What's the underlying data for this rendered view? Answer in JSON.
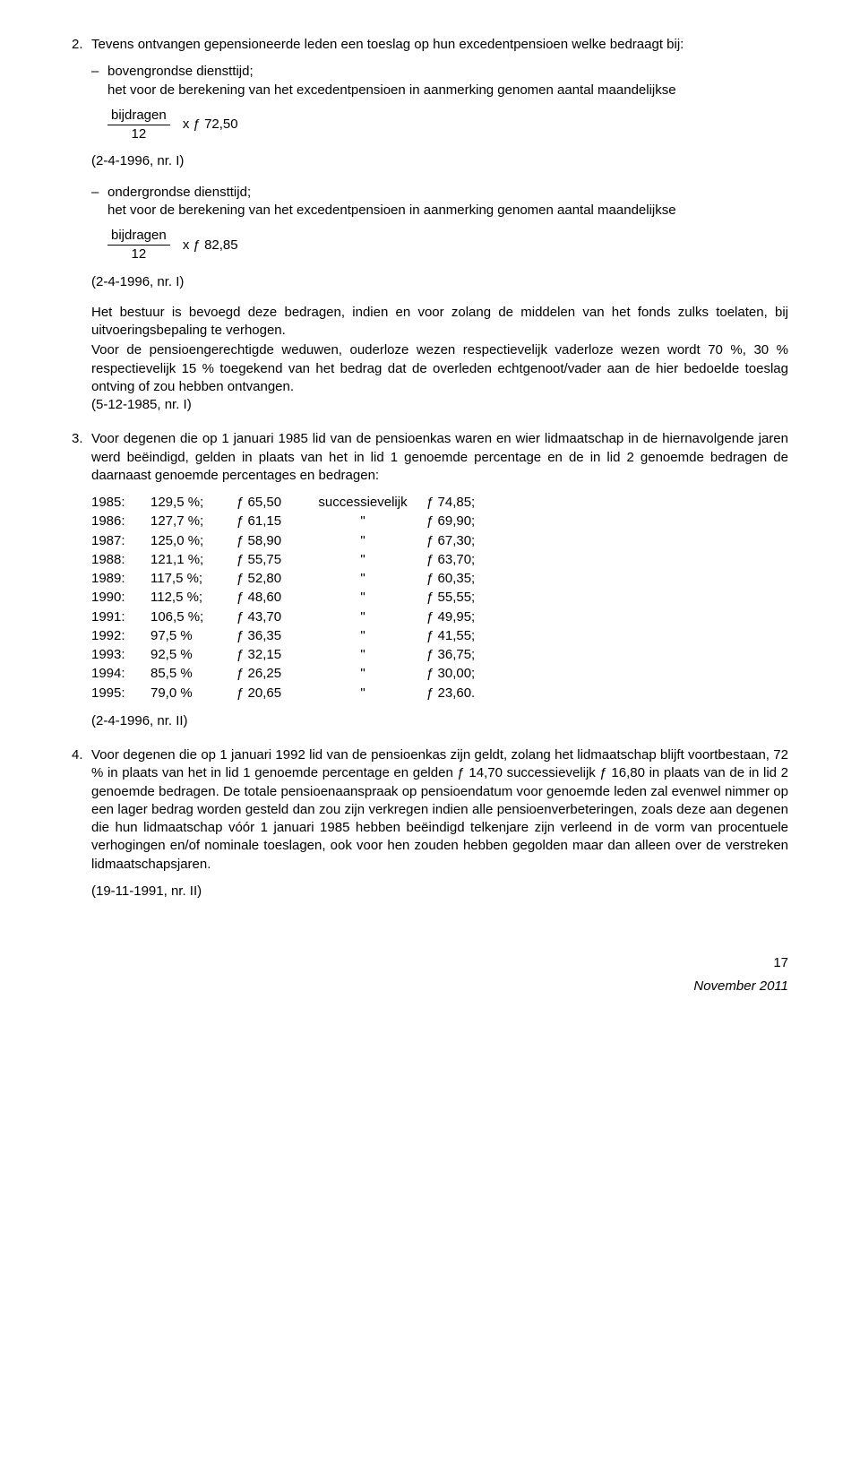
{
  "item2": {
    "num": "2.",
    "intro": "Tevens ontvangen gepensioneerde leden een toeslag op hun excedentpensioen welke bedraagt bij:",
    "b1_dash": "–",
    "b1_text": "bovengrondse diensttijd;\nhet voor de berekening van het excedentpensioen in aanmerking genomen aantal maandelijkse",
    "frac1_top": "bijdragen",
    "frac1_bot": "12",
    "frac1_mult": "x ƒ 72,50",
    "ref1": "(2-4-1996, nr. I)",
    "b2_dash": "–",
    "b2_text": "ondergrondse diensttijd;\nhet voor de berekening van het excedentpensioen in aanmerking genomen aantal maandelijkse",
    "frac2_top": "bijdragen",
    "frac2_bot": "12",
    "frac2_mult": "x ƒ 82,85",
    "ref2": "(2-4-1996, nr. I)",
    "para_bestuur": "Het bestuur is bevoegd deze bedragen, indien en voor zolang de middelen van het fonds zulks toelaten, bij uitvoeringsbepaling te verhogen.",
    "para_widows": "Voor de pensioengerechtigde weduwen, ouderloze wezen respectievelijk vaderloze wezen wordt 70 %, 30 % respectievelijk 15 % toegekend van het bedrag dat de overleden echtgenoot/vader aan de hier bedoelde toeslag ontving of zou hebben ontvangen.",
    "ref3": "(5-12-1985, nr. I)"
  },
  "item3": {
    "num": "3.",
    "intro": "Voor degenen die op 1 januari 1985 lid van de pensioenkas waren en wier lidmaatschap in de hiernavolgende jaren werd beëindigd, gelden in plaats van het in lid 1 genoemde percentage en de in lid 2 genoemde bedragen de daarnaast genoemde percentages en bedragen:",
    "succ_word": "successievelijk",
    "quote": "\"",
    "rows": [
      {
        "y": "1985:",
        "p": "129,5 %;",
        "a": "ƒ 65,50",
        "b": "ƒ 74,85;"
      },
      {
        "y": "1986:",
        "p": "127,7 %;",
        "a": "ƒ 61,15",
        "b": "ƒ 69,90;"
      },
      {
        "y": "1987:",
        "p": "125,0 %;",
        "a": "ƒ 58,90",
        "b": "ƒ 67,30;"
      },
      {
        "y": "1988:",
        "p": "121,1 %;",
        "a": "ƒ 55,75",
        "b": "ƒ 63,70;"
      },
      {
        "y": "1989:",
        "p": "117,5 %;",
        "a": "ƒ 52,80",
        "b": "ƒ 60,35;"
      },
      {
        "y": "1990:",
        "p": "112,5 %;",
        "a": "ƒ 48,60",
        "b": "ƒ 55,55;"
      },
      {
        "y": "1991:",
        "p": "106,5 %;",
        "a": "ƒ 43,70",
        "b": "ƒ 49,95;"
      },
      {
        "y": "1992:",
        "p": "97,5 %",
        "a": "ƒ 36,35",
        "b": "ƒ 41,55;"
      },
      {
        "y": "1993:",
        "p": "92,5 %",
        "a": "ƒ 32,15",
        "b": "ƒ 36,75;"
      },
      {
        "y": "1994:",
        "p": "85,5 %",
        "a": "ƒ 26,25",
        "b": "ƒ 30,00;"
      },
      {
        "y": "1995:",
        "p": "79,0 %",
        "a": "ƒ 20,65",
        "b": "ƒ 23,60."
      }
    ],
    "ref": "(2-4-1996, nr. II)"
  },
  "item4": {
    "num": "4.",
    "text": "Voor degenen die op 1 januari 1992 lid van de pensioenkas zijn geldt, zolang het lidmaatschap blijft voortbestaan, 72 % in plaats van het in lid 1 genoemde percentage en gelden ƒ 14,70 successievelijk ƒ 16,80 in plaats van de in lid 2 genoemde bedragen. De totale pensioenaanspraak op pensioendatum voor genoemde leden zal evenwel nimmer op een lager bedrag worden gesteld dan zou zijn verkregen indien alle pensioenverbeteringen, zoals deze aan degenen die hun lidmaatschap vóór 1 januari 1985 hebben beëindigd telkenjare zijn verleend in de vorm van procentuele verhogingen en/of nominale toeslagen, ook voor hen zouden hebben gegolden maar dan alleen over de verstreken lidmaatschapsjaren.",
    "ref": "(19-11-1991, nr. II)"
  },
  "footer": {
    "page": "17",
    "date": "November 2011"
  }
}
